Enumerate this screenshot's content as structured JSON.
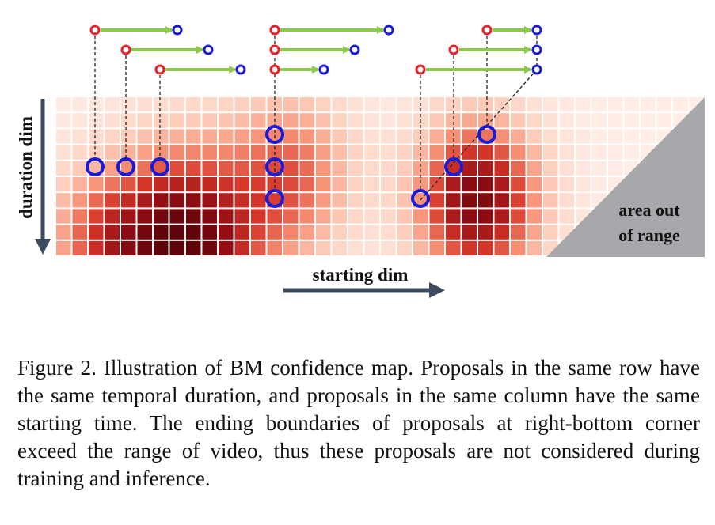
{
  "figure": {
    "x_axis_label": "starting dim",
    "y_axis_label": "duration dim",
    "out_of_range_label_line1": "area out",
    "out_of_range_label_line2": "of range",
    "colors": {
      "start_node": "#e8202a",
      "end_node": "#1a1adb",
      "proposal_arrow": "#8cc84a",
      "axis_arrow": "#3d4b5e",
      "out_of_range_fill": "#a7a8ab",
      "dashed_line": "#222222"
    }
  },
  "caption": {
    "text": "Figure 2. Illustration of BM confidence map.  Proposals in the same row have the same temporal duration, and proposals in the same column have the same starting time. The ending boundaries of proposals at right-bottom corner exceed the range of video, thus these proposals are not considered during training and inference."
  }
}
